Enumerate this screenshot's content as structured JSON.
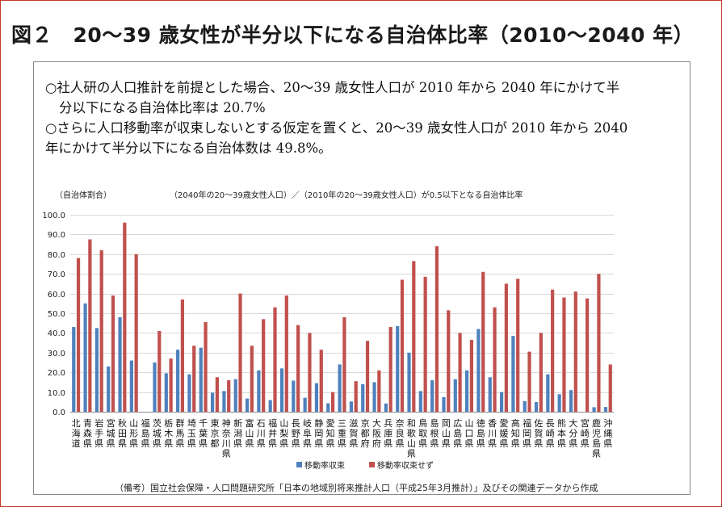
{
  "figure_title": "図２　20～39 歳女性が半分以下になる自治体比率（2010～2040 年）",
  "summary": {
    "line1": "○社人研の人口推計を前提とした場合、20～39 歳女性人口が 2010 年から 2040 年にかけて半",
    "line1b": "分以下になる自治体比率は 20.7%",
    "line2": "○さらに人口移動率が収束しないとする仮定を置くと、20～39 歳女性人口が 2010 年から 2040",
    "line2b": "年にかけて半分以下になる自治体数は 49.8%。"
  },
  "source_note": "（備考）国立社会保障・人口問題研究所「日本の地域別将来推計人口（平成25年3月推計）」及びその関連データから作成",
  "colors": {
    "series1": "#4f81bd",
    "series2": "#c0504d",
    "grid": "#d9d9d9",
    "frame": "#c0392b"
  },
  "chart_data": {
    "type": "bar",
    "title": "（2040年の20～39歳女性人口）／（2010年の20～39歳女性人口）が0.5以下となる自治体比率",
    "ylabel": "（自治体割合）",
    "xlabel": "",
    "ylim": [
      0,
      100
    ],
    "yticks": [
      "0.0",
      "10.0",
      "20.0",
      "30.0",
      "40.0",
      "50.0",
      "60.0",
      "70.0",
      "80.0",
      "90.0",
      "100.0"
    ],
    "grid": true,
    "legend_position": "bottom",
    "categories": [
      "北海道",
      "青森県",
      "岩手県",
      "宮城県",
      "秋田県",
      "山形県",
      "福島県",
      "茨城県",
      "栃木県",
      "群馬県",
      "埼玉県",
      "千葉県",
      "東京都",
      "神奈川県",
      "新潟県",
      "富山県",
      "石川県",
      "福井県",
      "山梨県",
      "長野県",
      "岐阜県",
      "静岡県",
      "愛知県",
      "三重県",
      "滋賀県",
      "京都府",
      "大阪府",
      "兵庫県",
      "奈良県",
      "和歌山県",
      "鳥取県",
      "島根県",
      "岡山県",
      "広島県",
      "山口県",
      "徳島県",
      "香川県",
      "愛媛県",
      "高知県",
      "福岡県",
      "佐賀県",
      "長崎県",
      "熊本県",
      "大分県",
      "宮崎県",
      "鹿児島県",
      "沖縄県"
    ],
    "series": [
      {
        "name": "移動率収束",
        "values": [
          43.0,
          55.0,
          42.5,
          23.0,
          48.0,
          26.0,
          0,
          25.0,
          19.5,
          31.5,
          19.0,
          32.5,
          9.7,
          10.5,
          16.5,
          6.7,
          21.0,
          5.9,
          22.0,
          15.8,
          7.1,
          14.5,
          4.3,
          24.0,
          5.2,
          14.0,
          15.0,
          4.2,
          43.5,
          30.0,
          10.5,
          16.0,
          7.4,
          16.5,
          21.0,
          42.0,
          17.5,
          10.0,
          38.5,
          5.4,
          4.9,
          19.0,
          8.9,
          11.0,
          0,
          2.3,
          2.4
        ]
      },
      {
        "name": "移動率収束せず",
        "values": [
          78.0,
          87.5,
          82.0,
          59.0,
          96.0,
          80.0,
          0,
          41.0,
          27.0,
          57.0,
          33.5,
          45.5,
          17.5,
          16.0,
          60.0,
          33.5,
          47.0,
          53.0,
          59.0,
          44.0,
          40.0,
          31.5,
          10.0,
          48.0,
          15.5,
          36.0,
          21.0,
          43.0,
          67.0,
          76.5,
          68.5,
          84.0,
          51.5,
          40.0,
          36.5,
          71.0,
          53.0,
          65.0,
          67.5,
          30.5,
          40.0,
          62.0,
          58.0,
          61.0,
          57.5,
          70.0,
          24.0
        ]
      }
    ]
  }
}
